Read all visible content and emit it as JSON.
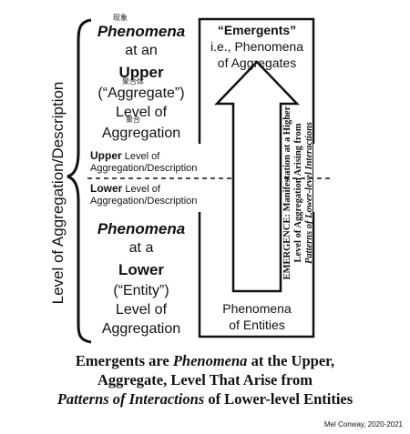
{
  "side_axis_label": "Level of Aggregation/Description",
  "upper_block": {
    "cjk_phenomena": "现象",
    "line1": "Phenomena",
    "line2": "at an",
    "line3": "Upper",
    "cjk_aggregate": "聚合体",
    "line4": "(“Aggregate”)",
    "line5": "Level of",
    "cjk_aggregation": "聚合",
    "line6": "Aggregation"
  },
  "boundary_labels": {
    "upper_word": "Upper",
    "upper_rest": " Level of",
    "upper_line2": "Aggregation/Description",
    "lower_word": "Lower",
    "lower_rest": " Level of",
    "lower_line2": "Aggregation/Description"
  },
  "lower_block": {
    "line1": "Phenomena",
    "line2": "at a",
    "line3": "Lower",
    "line4": "(“Entity”)",
    "line5": "Level of",
    "line6": "Aggregation"
  },
  "top_box": {
    "title": "“Emergents”",
    "line2": "i.e., Phenomena",
    "line3": "of Aggregates"
  },
  "bottom_box": {
    "line1": "Phenomena",
    "line2": "of Entities"
  },
  "arrow_text": {
    "line1": "EMERGENCE: Manifestation at a Higher",
    "line2": "Level of Aggregation Arising from",
    "line3": "Patterns of Lower-level Interactions"
  },
  "caption": {
    "line1_a": "Emergents are ",
    "line1_b": "Phenomena",
    "line1_c": " at the Upper,",
    "line2": "Aggregate, Level That Arise from",
    "line3_a": "Patterns of Interactions",
    "line3_b": " of Lower-level Entities"
  },
  "credit": "Mel Conway, 2020-2021"
}
